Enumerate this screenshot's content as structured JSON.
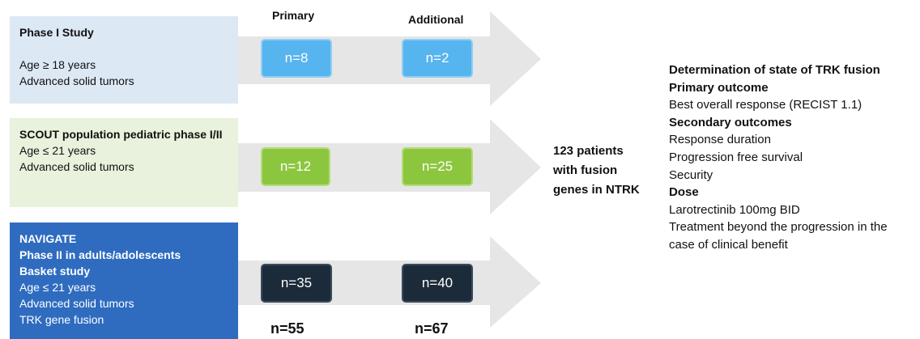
{
  "headers": {
    "primary": "Primary",
    "additional": "Additional"
  },
  "studies": [
    {
      "lines": [
        {
          "text": "Phase I Study",
          "bold": true
        },
        {
          "text": "",
          "bold": false
        },
        {
          "text": "Age ≥ 18 years",
          "bold": false
        },
        {
          "text": "Advanced solid tumors",
          "bold": false
        }
      ],
      "primary_n": "n=8",
      "additional_n": "n=2",
      "color": "#dde8f5",
      "box_color": "#56b4ee"
    },
    {
      "lines": [
        {
          "text": "SCOUT population pediatric phase I/II",
          "bold": true
        },
        {
          "text": "Age ≤ 21 years",
          "bold": false
        },
        {
          "text": "Advanced solid tumors",
          "bold": false
        }
      ],
      "primary_n": "n=12",
      "additional_n": "n=25",
      "color": "#e8f2dc",
      "box_color": "#8cc63e"
    },
    {
      "lines": [
        {
          "text": "NAVIGATE",
          "bold": true
        },
        {
          "text": "Phase II in adults/adolescents",
          "bold": true
        },
        {
          "text": "Basket study",
          "bold": true
        },
        {
          "text": "Age ≤ 21 years",
          "bold": false
        },
        {
          "text": "Advanced solid tumors",
          "bold": false
        },
        {
          "text": "TRK gene fusion",
          "bold": false
        }
      ],
      "primary_n": "n=35",
      "additional_n": "n=40",
      "color": "#2f6cc0",
      "box_color": "#1c2b3a"
    }
  ],
  "totals": {
    "primary": "n=55",
    "additional": "n=67"
  },
  "center_label": [
    "123 patients",
    "with fusion",
    "genes in NTRK"
  ],
  "outcomes": [
    {
      "text": "Determination of state of TRK fusion",
      "bold": true
    },
    {
      "text": "Primary outcome",
      "bold": true
    },
    {
      "text": "Best overall response (RECIST 1.1)",
      "bold": false
    },
    {
      "text": "Secondary outcomes",
      "bold": true
    },
    {
      "text": "Response duration",
      "bold": false
    },
    {
      "text": "Progression free survival",
      "bold": false
    },
    {
      "text": "Security",
      "bold": false
    },
    {
      "text": "Dose",
      "bold": true
    },
    {
      "text": "Larotrectinib 100mg BID",
      "bold": false
    },
    {
      "text": "Treatment beyond the progression in the case of clinical benefit",
      "bold": false
    }
  ]
}
